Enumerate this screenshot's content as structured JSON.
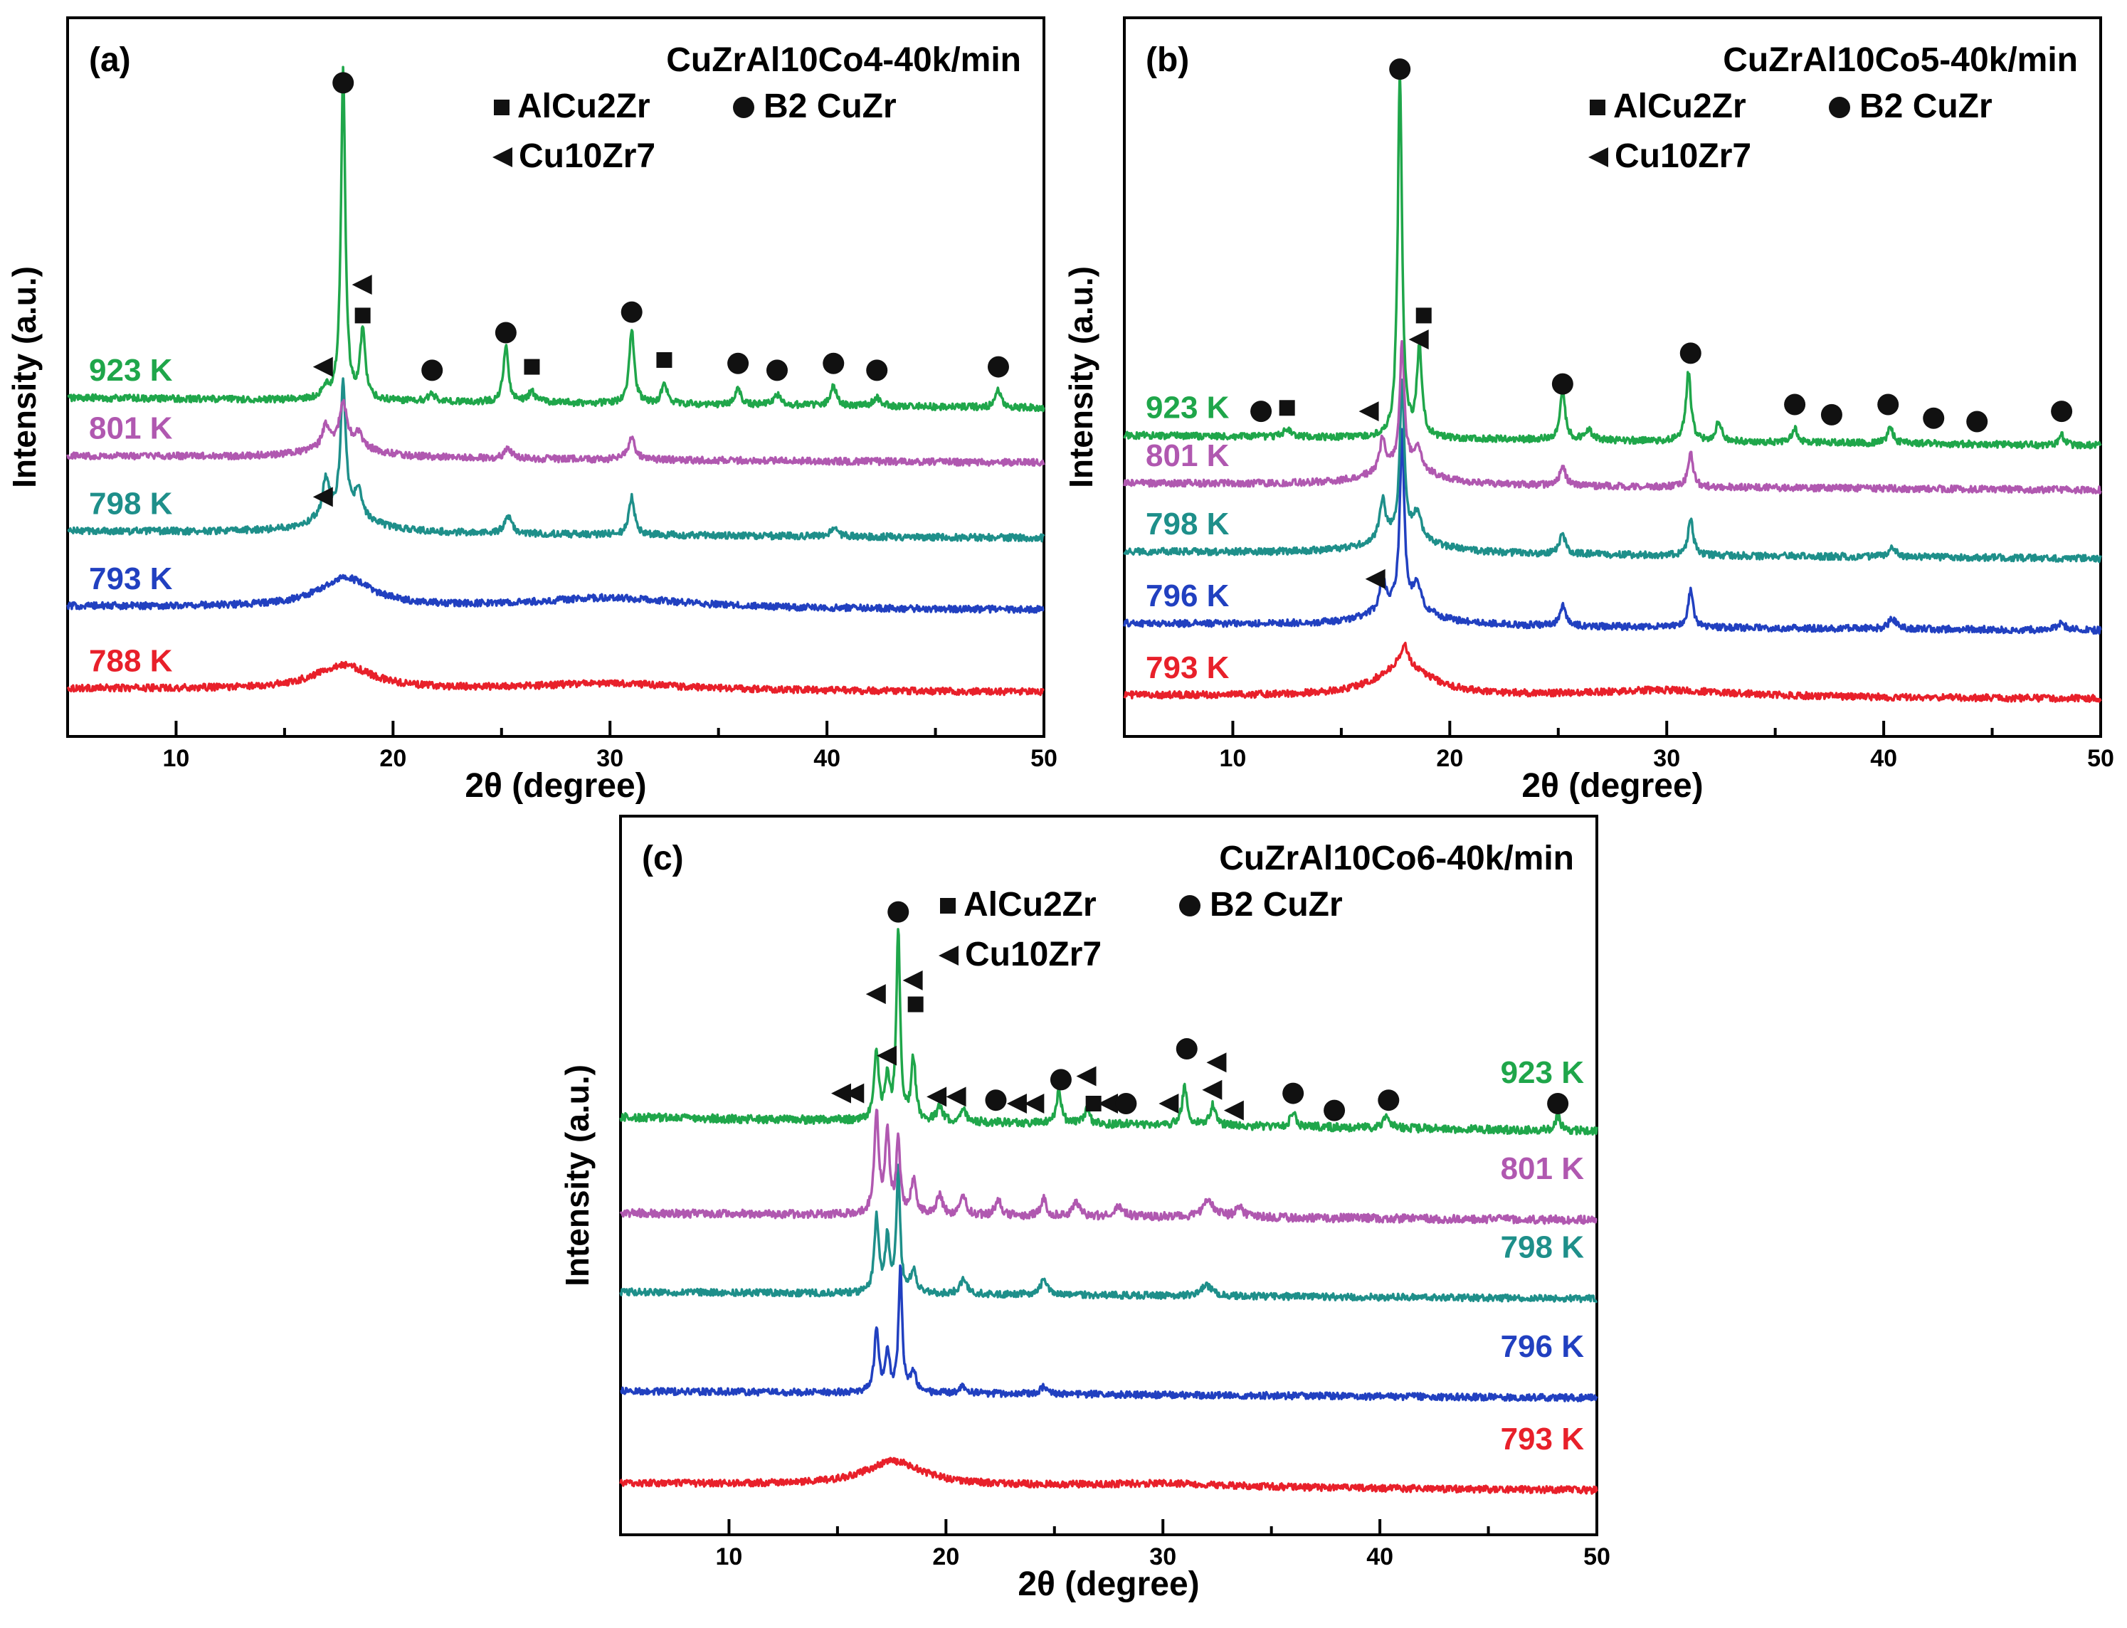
{
  "chart_data": [
    {
      "type": "line",
      "panel_label": "(a)",
      "title": "CuZrAl10Co4-40k/min",
      "xlabel": "2θ (degree)",
      "ylabel": "Intensity (a.u.)",
      "xlim": [
        5,
        50
      ],
      "ylim": [
        0,
        10.5
      ],
      "xticks": [
        10,
        20,
        30,
        40,
        50
      ],
      "legend": [
        {
          "marker": "square",
          "label": "AlCu2Zr"
        },
        {
          "marker": "circle",
          "label": "B2 CuZr"
        },
        {
          "marker": "triangle",
          "label": "Cu10Zr7"
        }
      ],
      "series": [
        {
          "name": "788 K",
          "color": "#e8202a",
          "baseline": 0.7,
          "drift": -0.05,
          "peaks": [
            [
              17.7,
              0.35,
              1.6
            ],
            [
              30,
              0.1,
              4
            ]
          ],
          "noise": 0.05
        },
        {
          "name": "793 K",
          "color": "#2140c0",
          "baseline": 1.9,
          "drift": -0.05,
          "peaks": [
            [
              17.8,
              0.42,
              1.5
            ],
            [
              30,
              0.15,
              4
            ]
          ],
          "noise": 0.05
        },
        {
          "name": "798 K",
          "color": "#1e8f8a",
          "baseline": 3.0,
          "drift": -0.1,
          "peaks": [
            [
              16.9,
              0.55,
              0.18
            ],
            [
              17.7,
              1.9,
              0.14
            ],
            [
              18.4,
              0.35,
              0.2
            ],
            [
              25.3,
              0.25,
              0.2
            ],
            [
              31,
              0.55,
              0.15
            ],
            [
              40.3,
              0.12,
              0.2
            ],
            [
              17.7,
              0.3,
              1.5
            ]
          ],
          "noise": 0.05
        },
        {
          "name": "801 K",
          "color": "#b058b0",
          "baseline": 4.1,
          "drift": -0.1,
          "peaks": [
            [
              16.9,
              0.3,
              0.2
            ],
            [
              17.7,
              0.6,
              0.2
            ],
            [
              18.4,
              0.2,
              0.2
            ],
            [
              25.3,
              0.15,
              0.2
            ],
            [
              31,
              0.3,
              0.2
            ],
            [
              17.7,
              0.2,
              1.5
            ]
          ],
          "noise": 0.05
        },
        {
          "name": "923 K",
          "color": "#1fa64a",
          "baseline": 4.95,
          "drift": -0.15,
          "peaks": [
            [
              17.7,
              4.8,
              0.12
            ],
            [
              18.6,
              1.0,
              0.14
            ],
            [
              16.9,
              0.15,
              0.2
            ],
            [
              21.8,
              0.1,
              0.2
            ],
            [
              25.2,
              0.8,
              0.14
            ],
            [
              26.4,
              0.15,
              0.2
            ],
            [
              31,
              1.1,
              0.14
            ],
            [
              32.5,
              0.3,
              0.15
            ],
            [
              35.9,
              0.25,
              0.15
            ],
            [
              37.7,
              0.15,
              0.2
            ],
            [
              40.3,
              0.3,
              0.15
            ],
            [
              42.3,
              0.12,
              0.2
            ],
            [
              47.9,
              0.25,
              0.15
            ]
          ],
          "noise": 0.05
        }
      ],
      "markers": [
        {
          "type": "circle",
          "x": 17.7,
          "y": 9.55
        },
        {
          "type": "triangle",
          "x": 18.6,
          "y": 6.6
        },
        {
          "type": "square",
          "x": 18.6,
          "y": 6.15
        },
        {
          "type": "triangle",
          "x": 16.8,
          "y": 5.4
        },
        {
          "type": "circle",
          "x": 21.8,
          "y": 5.35
        },
        {
          "type": "circle",
          "x": 25.2,
          "y": 5.9
        },
        {
          "type": "square",
          "x": 26.4,
          "y": 5.4
        },
        {
          "type": "circle",
          "x": 31.0,
          "y": 6.2
        },
        {
          "type": "square",
          "x": 32.5,
          "y": 5.5
        },
        {
          "type": "circle",
          "x": 35.9,
          "y": 5.45
        },
        {
          "type": "circle",
          "x": 37.7,
          "y": 5.35
        },
        {
          "type": "circle",
          "x": 40.3,
          "y": 5.45
        },
        {
          "type": "circle",
          "x": 42.3,
          "y": 5.35
        },
        {
          "type": "circle",
          "x": 47.9,
          "y": 5.4
        },
        {
          "type": "triangle",
          "x": 16.8,
          "y": 3.5
        }
      ]
    },
    {
      "type": "line",
      "panel_label": "(b)",
      "title": "CuZrAl10Co5-40k/min",
      "xlabel": "2θ (degree)",
      "ylabel": "Intensity (a.u.)",
      "xlim": [
        5,
        50
      ],
      "ylim": [
        0,
        10.5
      ],
      "xticks": [
        10,
        20,
        30,
        40,
        50
      ],
      "legend": [
        {
          "marker": "square",
          "label": "AlCu2Zr"
        },
        {
          "marker": "circle",
          "label": "B2 CuZr"
        },
        {
          "marker": "triangle",
          "label": "Cu10Zr7"
        }
      ],
      "series": [
        {
          "name": "793 K",
          "color": "#e8202a",
          "baseline": 0.6,
          "drift": -0.05,
          "peaks": [
            [
              17.9,
              0.45,
              1.5
            ],
            [
              17.9,
              0.3,
              0.2
            ],
            [
              30,
              0.1,
              4
            ]
          ],
          "noise": 0.05
        },
        {
          "name": "796 K",
          "color": "#2140c0",
          "baseline": 1.65,
          "drift": -0.1,
          "peaks": [
            [
              16.9,
              0.5,
              0.15
            ],
            [
              17.8,
              2.5,
              0.12
            ],
            [
              18.5,
              0.35,
              0.2
            ],
            [
              25.2,
              0.3,
              0.15
            ],
            [
              31.1,
              0.55,
              0.14
            ],
            [
              40.4,
              0.15,
              0.2
            ],
            [
              48.2,
              0.1,
              0.2
            ],
            [
              17.8,
              0.3,
              1.5
            ]
          ],
          "noise": 0.05
        },
        {
          "name": "798 K",
          "color": "#1e8f8a",
          "baseline": 2.7,
          "drift": -0.1,
          "peaks": [
            [
              16.9,
              0.55,
              0.15
            ],
            [
              17.8,
              2.2,
              0.12
            ],
            [
              18.5,
              0.35,
              0.2
            ],
            [
              25.2,
              0.3,
              0.15
            ],
            [
              31.1,
              0.55,
              0.14
            ],
            [
              40.4,
              0.15,
              0.2
            ],
            [
              17.8,
              0.3,
              1.5
            ]
          ],
          "noise": 0.05
        },
        {
          "name": "801 K",
          "color": "#b058b0",
          "baseline": 3.7,
          "drift": -0.1,
          "peaks": [
            [
              16.9,
              0.45,
              0.15
            ],
            [
              17.8,
              1.8,
              0.12
            ],
            [
              18.5,
              0.3,
              0.2
            ],
            [
              25.2,
              0.3,
              0.15
            ],
            [
              31.1,
              0.5,
              0.14
            ],
            [
              17.8,
              0.3,
              1.5
            ]
          ],
          "noise": 0.05
        },
        {
          "name": "923 K",
          "color": "#1fa64a",
          "baseline": 4.4,
          "drift": -0.15,
          "peaks": [
            [
              17.7,
              5.3,
              0.12
            ],
            [
              18.6,
              1.3,
              0.14
            ],
            [
              12.5,
              0.12,
              0.2
            ],
            [
              25.2,
              0.7,
              0.14
            ],
            [
              26.4,
              0.15,
              0.2
            ],
            [
              31,
              1.0,
              0.14
            ],
            [
              32.4,
              0.3,
              0.15
            ],
            [
              35.9,
              0.2,
              0.15
            ],
            [
              40.3,
              0.25,
              0.15
            ],
            [
              48.2,
              0.15,
              0.15
            ]
          ],
          "noise": 0.05
        }
      ],
      "markers": [
        {
          "type": "circle",
          "x": 17.7,
          "y": 9.75
        },
        {
          "type": "square",
          "x": 18.8,
          "y": 6.15
        },
        {
          "type": "triangle",
          "x": 18.6,
          "y": 5.8
        },
        {
          "type": "circle",
          "x": 11.3,
          "y": 4.75
        },
        {
          "type": "square",
          "x": 12.5,
          "y": 4.8
        },
        {
          "type": "triangle",
          "x": 16.3,
          "y": 4.75
        },
        {
          "type": "circle",
          "x": 25.2,
          "y": 5.15
        },
        {
          "type": "circle",
          "x": 31.1,
          "y": 5.6
        },
        {
          "type": "circle",
          "x": 35.9,
          "y": 4.85
        },
        {
          "type": "circle",
          "x": 37.6,
          "y": 4.7
        },
        {
          "type": "circle",
          "x": 40.2,
          "y": 4.85
        },
        {
          "type": "circle",
          "x": 42.3,
          "y": 4.65
        },
        {
          "type": "circle",
          "x": 44.3,
          "y": 4.6
        },
        {
          "type": "circle",
          "x": 48.2,
          "y": 4.75
        },
        {
          "type": "triangle",
          "x": 16.6,
          "y": 2.3
        }
      ]
    },
    {
      "type": "line",
      "panel_label": "(c)",
      "title": "CuZrAl10Co6-40k/min",
      "xlabel": "2θ (degree)",
      "ylabel": "Intensity (a.u.)",
      "xlim": [
        5,
        50
      ],
      "ylim": [
        0,
        10.5
      ],
      "xticks": [
        10,
        20,
        30,
        40,
        50
      ],
      "legend": [
        {
          "marker": "square",
          "label": "AlCu2Zr"
        },
        {
          "marker": "circle",
          "label": "B2 CuZr"
        },
        {
          "marker": "triangle",
          "label": "Cu10Zr7"
        }
      ],
      "series": [
        {
          "name": "793 K",
          "color": "#e8202a",
          "baseline": 0.75,
          "drift": -0.1,
          "peaks": [
            [
              17.6,
              0.35,
              1.6
            ],
            [
              30,
              0.05,
              4
            ]
          ],
          "noise": 0.05
        },
        {
          "name": "796 K",
          "color": "#2140c0",
          "baseline": 2.1,
          "drift": -0.1,
          "peaks": [
            [
              16.8,
              0.9,
              0.12
            ],
            [
              17.3,
              0.6,
              0.12
            ],
            [
              17.9,
              1.8,
              0.1
            ],
            [
              18.5,
              0.3,
              0.15
            ],
            [
              20.8,
              0.1,
              0.2
            ],
            [
              24.5,
              0.1,
              0.2
            ]
          ],
          "noise": 0.05
        },
        {
          "name": "798 K",
          "color": "#1e8f8a",
          "baseline": 3.55,
          "drift": -0.1,
          "peaks": [
            [
              16.8,
              1.1,
              0.12
            ],
            [
              17.3,
              0.8,
              0.12
            ],
            [
              17.8,
              1.8,
              0.1
            ],
            [
              18.5,
              0.35,
              0.15
            ],
            [
              20.8,
              0.2,
              0.2
            ],
            [
              24.5,
              0.2,
              0.2
            ],
            [
              32,
              0.15,
              0.3
            ]
          ],
          "noise": 0.05
        },
        {
          "name": "801 K",
          "color": "#b058b0",
          "baseline": 4.7,
          "drift": -0.1,
          "peaks": [
            [
              16.8,
              1.5,
              0.12
            ],
            [
              17.3,
              1.2,
              0.12
            ],
            [
              17.8,
              1.1,
              0.1
            ],
            [
              18.5,
              0.5,
              0.15
            ],
            [
              19.7,
              0.3,
              0.15
            ],
            [
              20.8,
              0.3,
              0.15
            ],
            [
              22.4,
              0.25,
              0.15
            ],
            [
              24.5,
              0.25,
              0.15
            ],
            [
              26,
              0.2,
              0.2
            ],
            [
              28,
              0.15,
              0.2
            ],
            [
              32.1,
              0.25,
              0.3
            ],
            [
              33.5,
              0.15,
              0.2
            ]
          ],
          "noise": 0.06
        },
        {
          "name": "923 K",
          "color": "#1fa64a",
          "baseline": 6.1,
          "drift": -0.2,
          "peaks": [
            [
              16.8,
              1.0,
              0.12
            ],
            [
              17.3,
              0.6,
              0.12
            ],
            [
              17.8,
              2.8,
              0.1
            ],
            [
              18.5,
              0.9,
              0.12
            ],
            [
              19.7,
              0.2,
              0.15
            ],
            [
              20.8,
              0.2,
              0.15
            ],
            [
              25.2,
              0.45,
              0.14
            ],
            [
              26.5,
              0.2,
              0.15
            ],
            [
              31,
              0.55,
              0.14
            ],
            [
              32.3,
              0.3,
              0.15
            ],
            [
              36,
              0.2,
              0.15
            ],
            [
              40.3,
              0.2,
              0.15
            ],
            [
              48.2,
              0.2,
              0.15
            ]
          ],
          "noise": 0.06
        }
      ],
      "markers": [
        {
          "type": "circle",
          "x": 17.8,
          "y": 9.1
        },
        {
          "type": "triangle",
          "x": 16.8,
          "y": 7.9
        },
        {
          "type": "triangle",
          "x": 18.5,
          "y": 8.1
        },
        {
          "type": "square",
          "x": 18.6,
          "y": 7.75
        },
        {
          "type": "triangle",
          "x": 17.3,
          "y": 7.0
        },
        {
          "type": "triangle",
          "x": 15.2,
          "y": 6.45
        },
        {
          "type": "triangle",
          "x": 15.8,
          "y": 6.45
        },
        {
          "type": "triangle",
          "x": 19.6,
          "y": 6.4
        },
        {
          "type": "triangle",
          "x": 20.5,
          "y": 6.4
        },
        {
          "type": "circle",
          "x": 22.3,
          "y": 6.35
        },
        {
          "type": "triangle",
          "x": 23.3,
          "y": 6.3
        },
        {
          "type": "triangle",
          "x": 24.1,
          "y": 6.3
        },
        {
          "type": "circle",
          "x": 25.3,
          "y": 6.65
        },
        {
          "type": "triangle",
          "x": 26.5,
          "y": 6.7
        },
        {
          "type": "square",
          "x": 26.8,
          "y": 6.3
        },
        {
          "type": "triangle",
          "x": 27.5,
          "y": 6.3
        },
        {
          "type": "circle",
          "x": 28.3,
          "y": 6.3
        },
        {
          "type": "triangle",
          "x": 30.3,
          "y": 6.3
        },
        {
          "type": "circle",
          "x": 31.1,
          "y": 7.1
        },
        {
          "type": "triangle",
          "x": 32.5,
          "y": 6.9
        },
        {
          "type": "triangle",
          "x": 32.3,
          "y": 6.5
        },
        {
          "type": "triangle",
          "x": 33.3,
          "y": 6.2
        },
        {
          "type": "circle",
          "x": 36.0,
          "y": 6.45
        },
        {
          "type": "circle",
          "x": 37.9,
          "y": 6.2
        },
        {
          "type": "circle",
          "x": 40.4,
          "y": 6.35
        },
        {
          "type": "circle",
          "x": 48.2,
          "y": 6.3
        }
      ]
    }
  ]
}
